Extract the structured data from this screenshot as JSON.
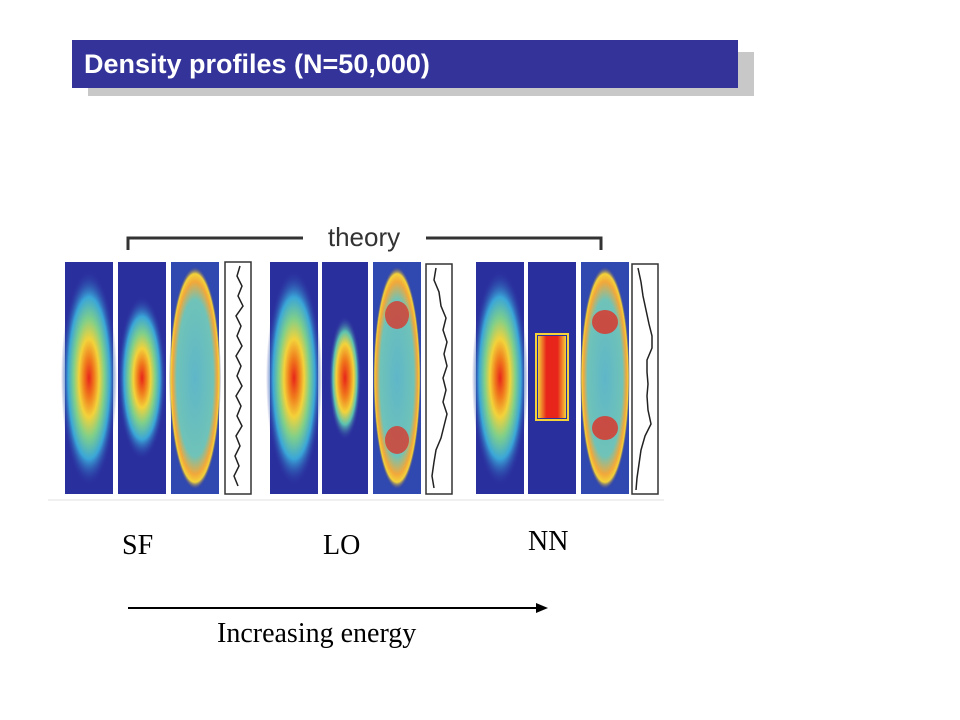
{
  "slide": {
    "title": "Density profiles (N=50,000)"
  },
  "figure": {
    "header_label": "theory",
    "groups": [
      {
        "name": "SF",
        "profile": "shell"
      },
      {
        "name": "LO",
        "profile": "core"
      },
      {
        "name": "NN",
        "profile": "box"
      }
    ]
  },
  "labels": {
    "sf": "SF",
    "lo": "LO",
    "nn": "NN",
    "axis": "Increasing energy"
  },
  "colors": {
    "title_bg": "#333399",
    "panel_bg": "#2a2f9e",
    "hot": "#e8251a"
  }
}
